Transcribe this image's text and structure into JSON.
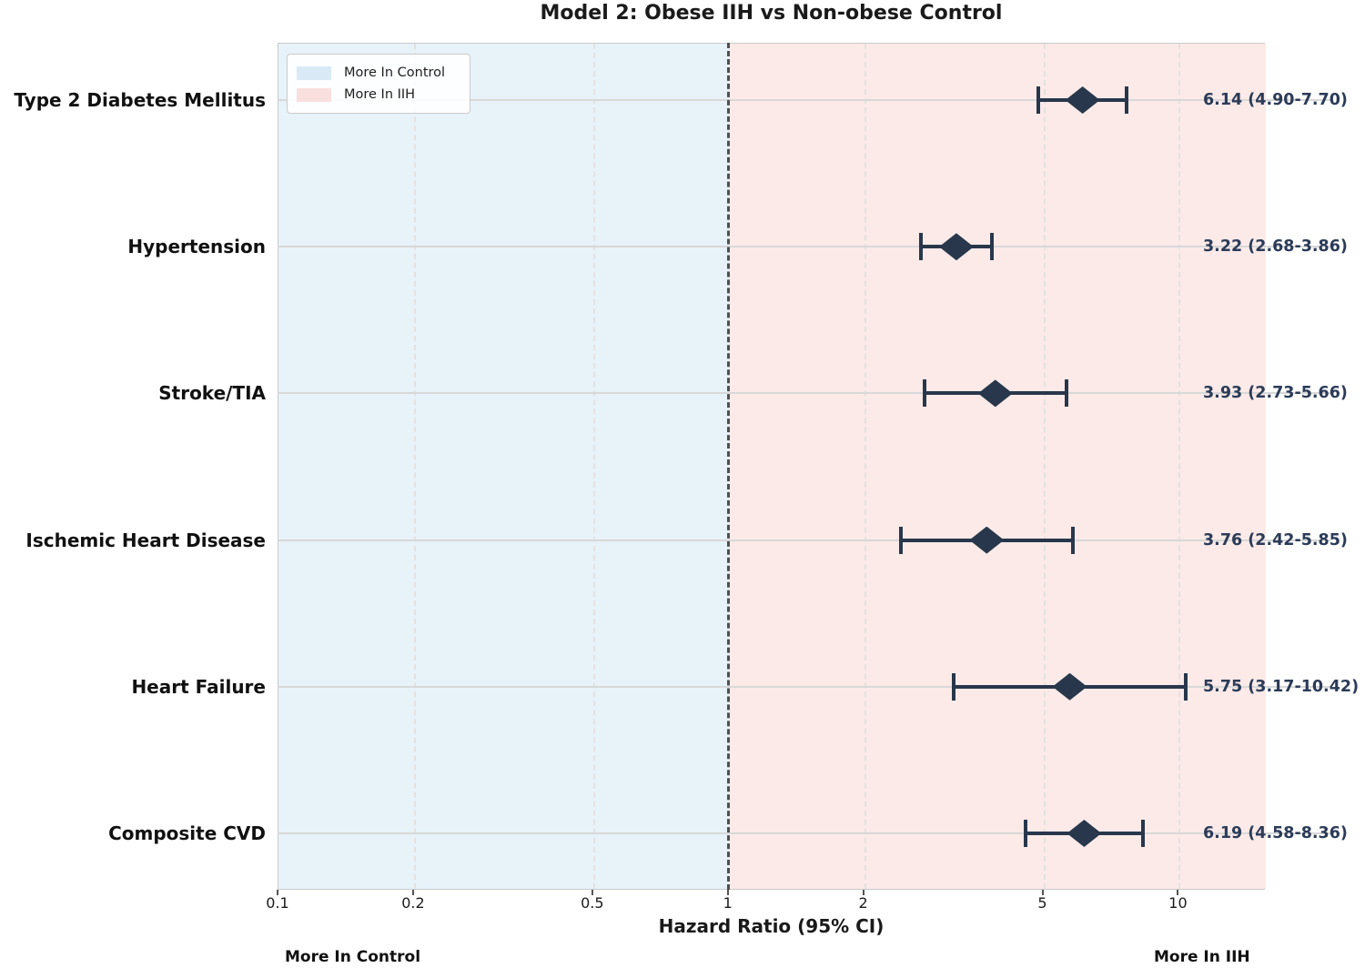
{
  "colors": {
    "control_region": "#e7f2f9",
    "iih_region": "#fbeae8",
    "marker": "#28374b",
    "value_text": "#2b3b58",
    "reference_line": "#4f4f4f",
    "gridline": "#d8d8d8",
    "legend_control_swatch": "#d9eaf6",
    "legend_iih_swatch": "#f9dfde"
  },
  "chart_data": {
    "type": "scatter",
    "subtype": "forest-plot",
    "title": "Model 2: Obese IIH vs Non-obese Control",
    "xlabel": "Hazard Ratio (95% CI)",
    "x_scale": "log",
    "xlim": [
      0.1,
      15.6
    ],
    "x_ticks": [
      0.1,
      0.2,
      0.5,
      1,
      2,
      5,
      10
    ],
    "x_tick_labels": [
      "0.1",
      "0.2",
      "0.5",
      "1",
      "2",
      "5",
      "10"
    ],
    "reference_value": 1,
    "grid": true,
    "legend_position": "upper-left",
    "legend": [
      {
        "label": "More In Control",
        "color": "#d9eaf6"
      },
      {
        "label": "More In IIH",
        "color": "#f9dfde"
      }
    ],
    "annotations": {
      "left": "More In Control",
      "right": "More In IIH"
    },
    "rows": [
      {
        "label": "Type 2 Diabetes Mellitus",
        "hr": 6.14,
        "ci_low": 4.9,
        "ci_high": 7.7,
        "value_label": "6.14 (4.90-7.70)"
      },
      {
        "label": "Hypertension",
        "hr": 3.22,
        "ci_low": 2.68,
        "ci_high": 3.86,
        "value_label": "3.22 (2.68-3.86)"
      },
      {
        "label": "Stroke/TIA",
        "hr": 3.93,
        "ci_low": 2.73,
        "ci_high": 5.66,
        "value_label": "3.93 (2.73-5.66)"
      },
      {
        "label": "Ischemic Heart Disease",
        "hr": 3.76,
        "ci_low": 2.42,
        "ci_high": 5.85,
        "value_label": "3.76 (2.42-5.85)"
      },
      {
        "label": "Heart Failure",
        "hr": 5.75,
        "ci_low": 3.17,
        "ci_high": 10.42,
        "value_label": "5.75 (3.17-10.42)"
      },
      {
        "label": "Composite CVD",
        "hr": 6.19,
        "ci_low": 4.58,
        "ci_high": 8.36,
        "value_label": "6.19 (4.58-8.36)"
      }
    ]
  }
}
